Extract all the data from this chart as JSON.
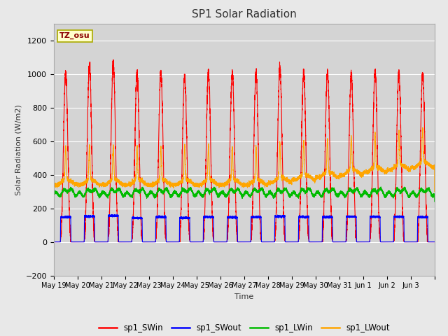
{
  "title": "SP1 Solar Radiation",
  "ylabel": "Solar Radiation (W/m2)",
  "xlabel": "Time",
  "ylim": [
    -200,
    1300
  ],
  "yticks": [
    -200,
    0,
    200,
    400,
    600,
    800,
    1000,
    1200
  ],
  "fig_bg": "#e8e8e8",
  "plot_bg": "#d4d4d4",
  "grid_color": "#ffffff",
  "colors": {
    "sp1_SWin": "#ff0000",
    "sp1_SWout": "#0000ff",
    "sp1_LWin": "#00bb00",
    "sp1_LWout": "#ffa500"
  },
  "tz_label": "TZ_osu",
  "n_days": 16,
  "pts_per_day": 480,
  "tick_labels": [
    "May 19",
    "May 20",
    "May 21",
    "May 22",
    "May 23",
    "May 24",
    "May 25",
    "May 26",
    "May 27",
    "May 28",
    "May 29",
    "May 30",
    "May 31",
    "Jun 1",
    "Jun 2",
    "Jun 3"
  ]
}
